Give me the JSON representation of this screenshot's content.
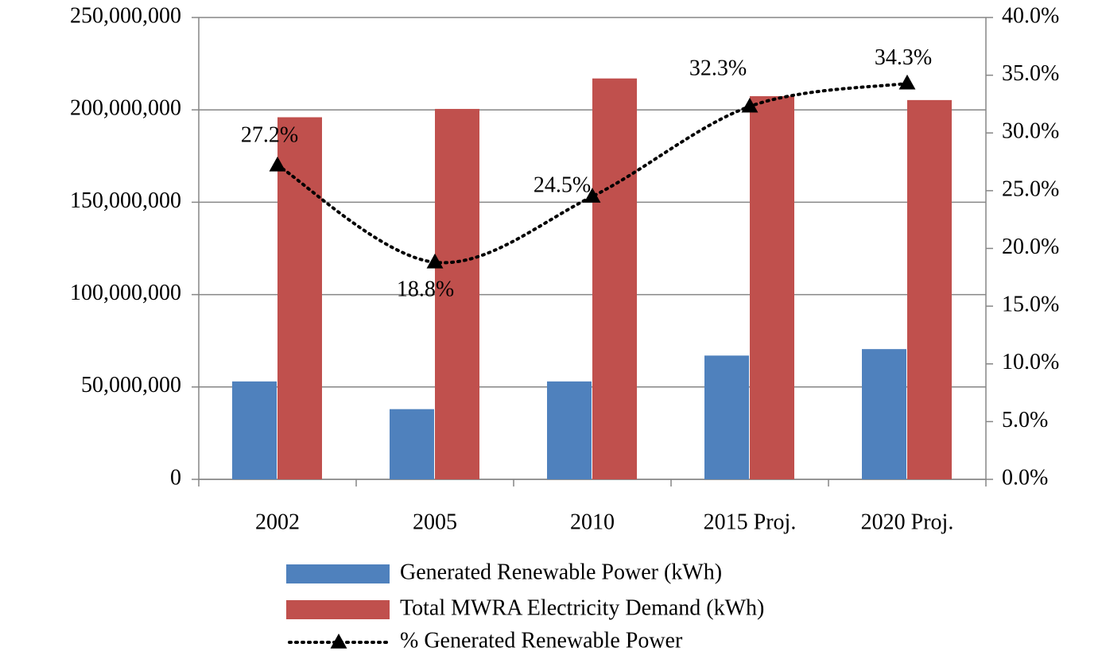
{
  "chart_data": {
    "type": "bar_line",
    "categories": [
      "2002",
      "2005",
      "2010",
      "2015 Proj.",
      "2020 Proj."
    ],
    "series": [
      {
        "name": "Generated Renewable Power (kWh)",
        "color": "#4f81bd",
        "type": "bar",
        "axis": "y",
        "values": [
          53000000,
          38000000,
          53000000,
          67000000,
          70500000
        ]
      },
      {
        "name": "Total MWRA Electricity Demand (kWh)",
        "color": "#c0504d",
        "type": "bar",
        "axis": "y",
        "values": [
          196000000,
          200500000,
          217000000,
          207400000,
          205300000
        ]
      },
      {
        "name": "% Generated Renewable Power",
        "color": "#000000",
        "type": "line",
        "axis": "y2",
        "values": [
          27.2,
          18.8,
          24.5,
          32.3,
          34.3
        ],
        "value_labels": [
          "27.2%",
          "18.8%",
          "24.5%",
          "32.3%",
          "34.3%"
        ]
      }
    ],
    "ylim": [
      0,
      250000000
    ],
    "yticks": [
      0,
      {
        "value": 50000000,
        "label": "50,000,000"
      },
      {
        "value": 100000000,
        "label": "100,000,000"
      },
      {
        "value": 150000000,
        "label": "150,000,000"
      },
      {
        "value": 200000000,
        "label": "200,000,000"
      },
      {
        "value": 250000000,
        "label": "250,000,000"
      }
    ],
    "y2lim": [
      0,
      40
    ],
    "y2ticks": [
      {
        "value": 0,
        "label": "0.0%"
      },
      {
        "value": 5,
        "label": "5.0%"
      },
      {
        "value": 10,
        "label": "10.0%"
      },
      {
        "value": 15,
        "label": "15.0%"
      },
      {
        "value": 20,
        "label": "20.0%"
      },
      {
        "value": 25,
        "label": "25.0%"
      },
      {
        "value": 30,
        "label": "30.0%"
      },
      {
        "value": 35,
        "label": "35.0%"
      },
      {
        "value": 40,
        "label": "40.0%"
      }
    ],
    "grid": true,
    "legend": "bottom"
  }
}
